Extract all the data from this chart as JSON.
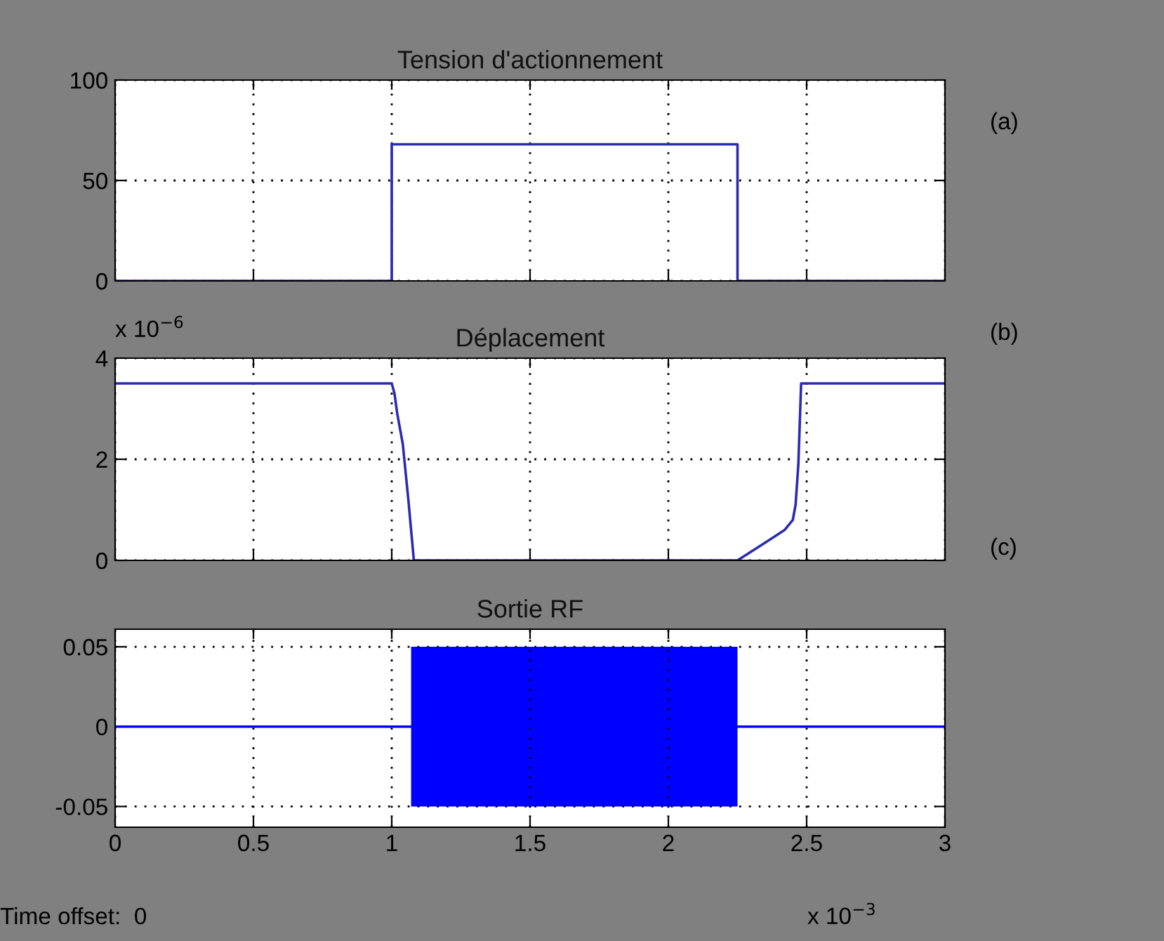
{
  "chart_data": [
    {
      "type": "line",
      "title": "Tension d'actionnement",
      "x": [
        0,
        1.0,
        1.0,
        2.25,
        2.25,
        3
      ],
      "series": [
        {
          "color": "#2b2bb0",
          "values": [
            0,
            0,
            68,
            68,
            0,
            0
          ]
        }
      ],
      "xlim": [
        0,
        3
      ],
      "xticks": [
        0,
        0.5,
        1,
        1.5,
        2,
        2.5,
        3
      ],
      "ylim": [
        0,
        100
      ],
      "yticks": [
        0,
        50,
        100
      ],
      "grid": true,
      "tick_labels": "y",
      "annotations": [
        "(a)"
      ]
    },
    {
      "type": "line",
      "title": "Déplacement",
      "x": [
        0,
        1.0,
        1.01,
        1.02,
        1.04,
        1.06,
        1.08,
        2.25,
        2.35,
        2.42,
        2.45,
        2.46,
        2.47,
        2.48,
        2.49,
        3
      ],
      "series": [
        {
          "color": "#2b2bb0",
          "values": [
            3.5,
            3.5,
            3.3,
            2.9,
            2.3,
            1.2,
            0,
            0,
            0.35,
            0.6,
            0.8,
            1.1,
            1.9,
            3.5,
            3.5,
            3.5
          ]
        }
      ],
      "xlim": [
        0,
        3
      ],
      "xticks": [
        0,
        0.5,
        1,
        1.5,
        2,
        2.5,
        3
      ],
      "ylim": [
        0,
        4
      ],
      "yticks": [
        0,
        2,
        4
      ],
      "grid": true,
      "tick_labels": "y",
      "annotations": [
        "x 10$^{−6}$",
        "(b)"
      ]
    },
    {
      "type": "line",
      "title": "Sortie RF",
      "x": [
        0,
        1.07,
        2.25,
        3
      ],
      "series": [
        {
          "color": "#0000ff",
          "values": [
            0,
            0,
            0,
            0
          ],
          "lower": [
            null,
            -0.05,
            -0.05,
            null
          ],
          "upper": [
            null,
            0.05,
            0.05,
            null
          ]
        }
      ],
      "xlim": [
        0,
        3
      ],
      "xticks": [
        0,
        0.5,
        1,
        1.5,
        2,
        2.5,
        3
      ],
      "ylim": [
        -0.063,
        0.061
      ],
      "yticks": [
        -0.05,
        0,
        0.05
      ],
      "grid": true,
      "annotations": [
        "x 10$^{−3}$",
        "Time offset:  0",
        "(c)"
      ]
    }
  ]
}
